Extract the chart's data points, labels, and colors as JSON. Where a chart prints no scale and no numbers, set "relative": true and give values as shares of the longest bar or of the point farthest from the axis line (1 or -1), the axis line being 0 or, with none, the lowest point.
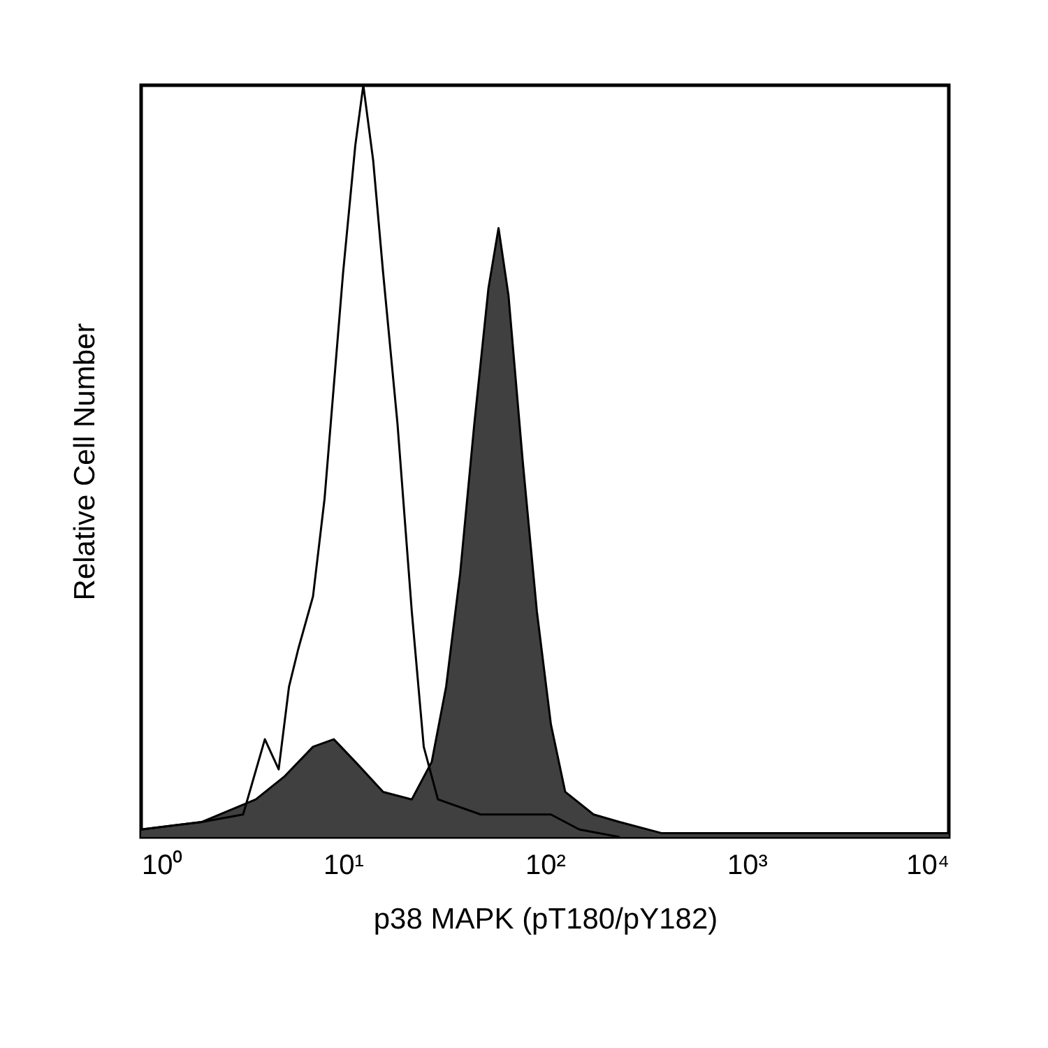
{
  "chart_data": {
    "type": "area",
    "relative": true,
    "log": "x",
    "xlabel": "p38 MAPK (pT180/pY182)",
    "ylabel": "Relative Cell Number",
    "xlim": [
      1,
      10000
    ],
    "xticks": [
      {
        "value": 1,
        "label": "10⁰"
      },
      {
        "value": 10,
        "label": "10¹"
      },
      {
        "value": 100,
        "label": "10²"
      },
      {
        "value": 1000,
        "label": "10³"
      },
      {
        "value": 10000,
        "label": "10⁴"
      }
    ],
    "grid": false,
    "series": [
      {
        "type": "area",
        "color": "#404040",
        "x": [
          1,
          2,
          3.7,
          5.1,
          7.1,
          9,
          11.5,
          15.8,
          21.9,
          27.5,
          32.4,
          38,
          44.7,
          52.5,
          58.9,
          66,
          77.6,
          91.2,
          107,
          126,
          174,
          234,
          380,
          10000
        ],
        "values": [
          0.01,
          0.02,
          0.05,
          0.08,
          0.12,
          0.13,
          0.1,
          0.06,
          0.05,
          0.1,
          0.2,
          0.35,
          0.55,
          0.73,
          0.81,
          0.72,
          0.5,
          0.3,
          0.15,
          0.06,
          0.03,
          0.02,
          0.005,
          0.005
        ]
      },
      {
        "type": "line",
        "color": "#000000",
        "x": [
          1,
          2,
          3.2,
          4.1,
          4.8,
          5.4,
          6,
          7.1,
          8.1,
          9,
          10,
          11.5,
          12.6,
          14.1,
          15.8,
          18.6,
          21.9,
          25.1,
          29.5,
          48,
          107,
          148,
          234
        ],
        "values": [
          0.01,
          0.02,
          0.03,
          0.13,
          0.09,
          0.2,
          0.25,
          0.32,
          0.45,
          0.6,
          0.75,
          0.92,
          1.0,
          0.9,
          0.75,
          0.55,
          0.3,
          0.12,
          0.05,
          0.03,
          0.03,
          0.01,
          0.0
        ]
      }
    ]
  }
}
